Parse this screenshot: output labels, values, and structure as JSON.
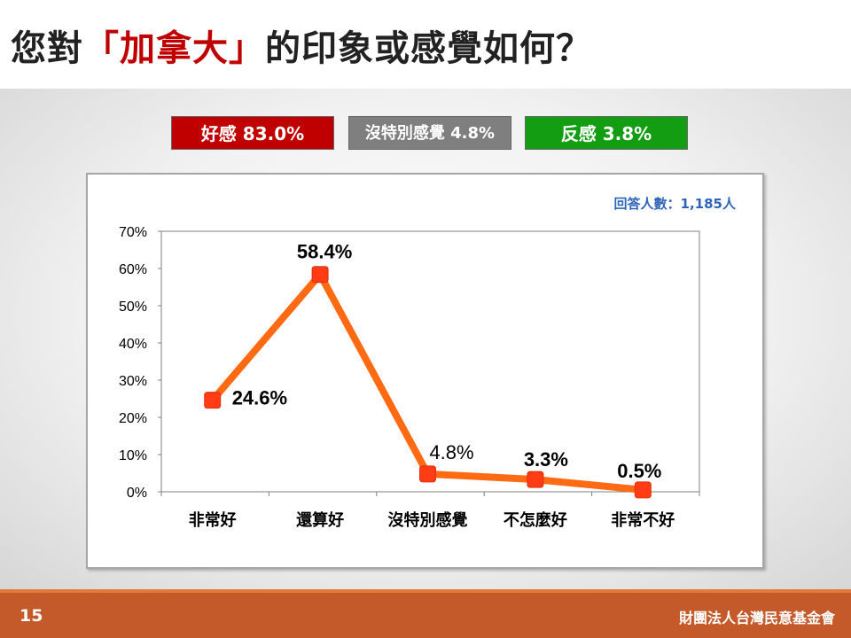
{
  "title": {
    "prefix": "您對",
    "highlight": "「加拿大」",
    "suffix": "的印象或感覺如何？"
  },
  "summary": {
    "good": "好感 83.0%",
    "neutral": "沒特別感覺 4.8%",
    "bad": "反感 3.8%"
  },
  "respondents": "回答人數：1,185人",
  "footer": {
    "page_number": "15",
    "organization": "財團法人台灣民意基金會"
  },
  "colors": {
    "line": "#ff6a13",
    "marker": "#ff3c14",
    "good": "#c00000",
    "neutral": "#7f7f7f",
    "bad": "#129d12",
    "footer": "#c45a2a"
  },
  "chart_data": {
    "type": "line",
    "categories": [
      "非常好",
      "還算好",
      "沒特別感覺",
      "不怎麼好",
      "非常不好"
    ],
    "values": [
      24.6,
      58.4,
      4.8,
      3.3,
      0.5
    ],
    "data_labels": [
      "24.6%",
      "58.4%",
      "4.8%",
      "3.3%",
      "0.5%"
    ],
    "y_ticks": [
      "0%",
      "10%",
      "20%",
      "30%",
      "40%",
      "50%",
      "60%",
      "70%"
    ],
    "ylim": [
      0,
      70
    ],
    "grid": false
  }
}
